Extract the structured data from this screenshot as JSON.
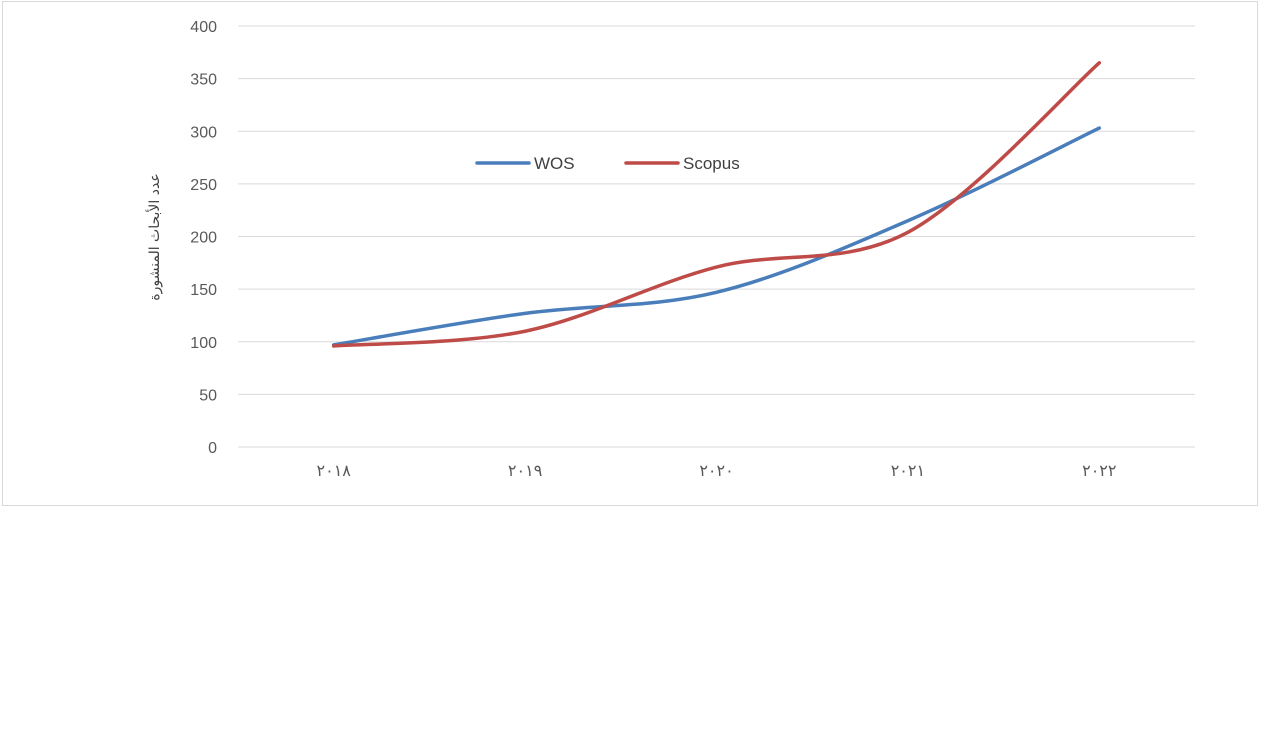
{
  "chart_data": {
    "type": "line",
    "title": "",
    "xlabel": "",
    "ylabel": "عدد الأبحاث المنشورة",
    "categories": [
      "٢٠١٨",
      "٢٠١٩",
      "٢٠٢٠",
      "٢٠٢١",
      "٢٠٢٢"
    ],
    "ylim": [
      0,
      400
    ],
    "yticks": [
      0,
      50,
      100,
      150,
      200,
      250,
      300,
      350,
      400
    ],
    "grid": true,
    "legend_position": "top-center",
    "smooth": true,
    "series": [
      {
        "name": "WOS",
        "color": "#4a7ebb",
        "values": [
          97,
          127,
          147,
          215,
          303
        ]
      },
      {
        "name": "Scopus",
        "color": "#be4b48",
        "values": [
          96,
          110,
          171,
          204,
          365
        ]
      }
    ]
  }
}
